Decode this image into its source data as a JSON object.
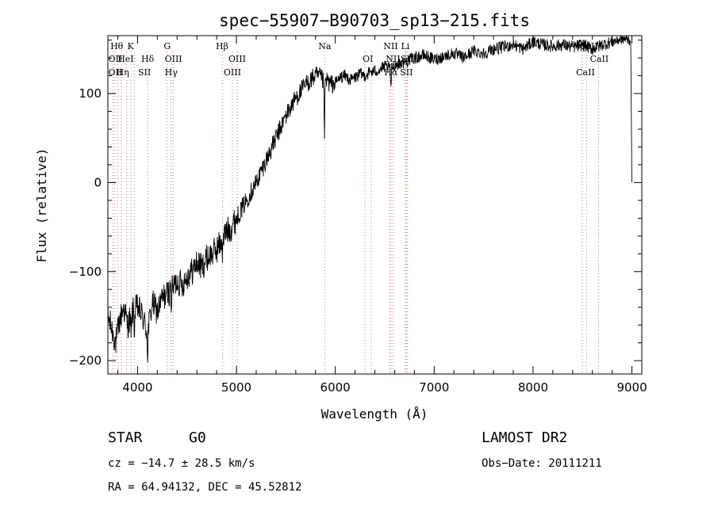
{
  "footer": {
    "object_class": "STAR",
    "subclass": "G0",
    "survey": "LAMOST DR2",
    "redshift": "cz = −14.7 ± 28.5 km/s",
    "obs_date": "Obs−Date: 20111211",
    "coords": "RA =  64.94132, DEC =  45.52812"
  },
  "chart_data": {
    "type": "line",
    "title": "spec−55907−B90703_sp13−215.fits",
    "xlabel": "Wavelength (Å)",
    "ylabel": "Flux (relative)",
    "xlim": [
      3700,
      9100
    ],
    "ylim": [
      -215,
      165
    ],
    "xticks": [
      4000,
      5000,
      6000,
      7000,
      8000,
      9000
    ],
    "yticks": [
      -200,
      -100,
      0,
      100
    ],
    "series_color": "#000000",
    "line_marker_color": "#c87878",
    "spectrum": {
      "x": [
        3700,
        3740,
        3780,
        3820,
        3860,
        3900,
        3950,
        4000,
        4050,
        4100,
        4150,
        4200,
        4250,
        4300,
        4350,
        4400,
        4450,
        4500,
        4550,
        4600,
        4650,
        4700,
        4750,
        4800,
        4850,
        4900,
        4950,
        5000,
        5050,
        5100,
        5150,
        5200,
        5300,
        5400,
        5500,
        5600,
        5700,
        5750,
        5800,
        5850,
        5890,
        5920,
        5950,
        6000,
        6050,
        6100,
        6150,
        6200,
        6250,
        6300,
        6350,
        6400,
        6450,
        6500,
        6550,
        6600,
        6650,
        6700,
        6750,
        6800,
        6900,
        7000,
        7100,
        7200,
        7300,
        7400,
        7500,
        7600,
        7700,
        7800,
        7900,
        8000,
        8100,
        8200,
        8300,
        8400,
        8500,
        8600,
        8700,
        8800,
        8900,
        8990
      ],
      "y": [
        -150,
        -165,
        -180,
        -155,
        -140,
        -160,
        -145,
        -140,
        -150,
        -170,
        -135,
        -145,
        -130,
        -125,
        -120,
        -110,
        -115,
        -105,
        -100,
        -90,
        -95,
        -85,
        -80,
        -75,
        -65,
        -55,
        -50,
        -40,
        -30,
        -20,
        -10,
        0,
        25,
        50,
        75,
        95,
        110,
        115,
        120,
        118,
        112,
        115,
        110,
        112,
        118,
        120,
        115,
        118,
        122,
        120,
        124,
        125,
        127,
        130,
        128,
        132,
        134,
        135,
        138,
        140,
        143,
        138,
        142,
        145,
        140,
        148,
        145,
        150,
        152,
        155,
        150,
        158,
        155,
        153,
        155,
        152,
        155,
        150,
        155,
        158,
        162,
        160
      ],
      "noise": 10,
      "dips": [
        {
          "x": 3934,
          "depth": 30
        },
        {
          "x": 3969,
          "depth": 25
        },
        {
          "x": 4102,
          "depth": 25
        },
        {
          "x": 4341,
          "depth": 15
        },
        {
          "x": 4861,
          "depth": 20
        },
        {
          "x": 5890,
          "depth": 65
        },
        {
          "x": 6563,
          "depth": 25
        }
      ],
      "end_drop": {
        "x": 9000,
        "y": 0
      }
    },
    "line_markers": [
      {
        "x": 3750
      },
      {
        "x": 3771
      },
      {
        "x": 3798
      },
      {
        "x": 3835
      },
      {
        "x": 3889
      },
      {
        "x": 3934
      },
      {
        "x": 3970
      },
      {
        "x": 4102
      },
      {
        "x": 4300
      },
      {
        "x": 4340
      },
      {
        "x": 4363
      },
      {
        "x": 4861
      },
      {
        "x": 4959
      },
      {
        "x": 5007
      },
      {
        "x": 5893
      },
      {
        "x": 6300
      },
      {
        "x": 6364
      },
      {
        "x": 6548
      },
      {
        "x": 6563
      },
      {
        "x": 6584
      },
      {
        "x": 6708
      },
      {
        "x": 6717
      },
      {
        "x": 6731
      },
      {
        "x": 8498
      },
      {
        "x": 8542
      },
      {
        "x": 8662
      }
    ],
    "line_labels": [
      {
        "text": "Hθ",
        "x": 3790,
        "row": 0
      },
      {
        "text": "K",
        "x": 3930,
        "row": 0
      },
      {
        "text": "G",
        "x": 4300,
        "row": 0
      },
      {
        "text": "Hβ",
        "x": 4855,
        "row": 0
      },
      {
        "text": "Na",
        "x": 5893,
        "row": 0
      },
      {
        "text": "NII",
        "x": 6560,
        "row": 0
      },
      {
        "text": "Li",
        "x": 6708,
        "row": 0
      },
      {
        "text": "CaII",
        "x": 8560,
        "row": 0
      },
      {
        "text": "OII",
        "x": 3775,
        "row": 1
      },
      {
        "text": "HeI",
        "x": 3880,
        "row": 1
      },
      {
        "text": "Hδ",
        "x": 4102,
        "row": 1
      },
      {
        "text": "OIII",
        "x": 4363,
        "row": 1
      },
      {
        "text": "OIII",
        "x": 5007,
        "row": 1
      },
      {
        "text": "OI",
        "x": 6330,
        "row": 1
      },
      {
        "text": "NII",
        "x": 6584,
        "row": 1
      },
      {
        "text": "SII",
        "x": 6725,
        "row": 1
      },
      {
        "text": "CaII",
        "x": 8670,
        "row": 1
      },
      {
        "text": "OII",
        "x": 3775,
        "row": 2
      },
      {
        "text": "Hη",
        "x": 3850,
        "row": 2
      },
      {
        "text": "SII",
        "x": 4070,
        "row": 2
      },
      {
        "text": "Hγ",
        "x": 4340,
        "row": 2
      },
      {
        "text": "OIII",
        "x": 4959,
        "row": 2
      },
      {
        "text": "Hα",
        "x": 6563,
        "row": 2
      },
      {
        "text": "SII",
        "x": 6720,
        "row": 2
      },
      {
        "text": "CaII",
        "x": 8530,
        "row": 2
      }
    ]
  }
}
